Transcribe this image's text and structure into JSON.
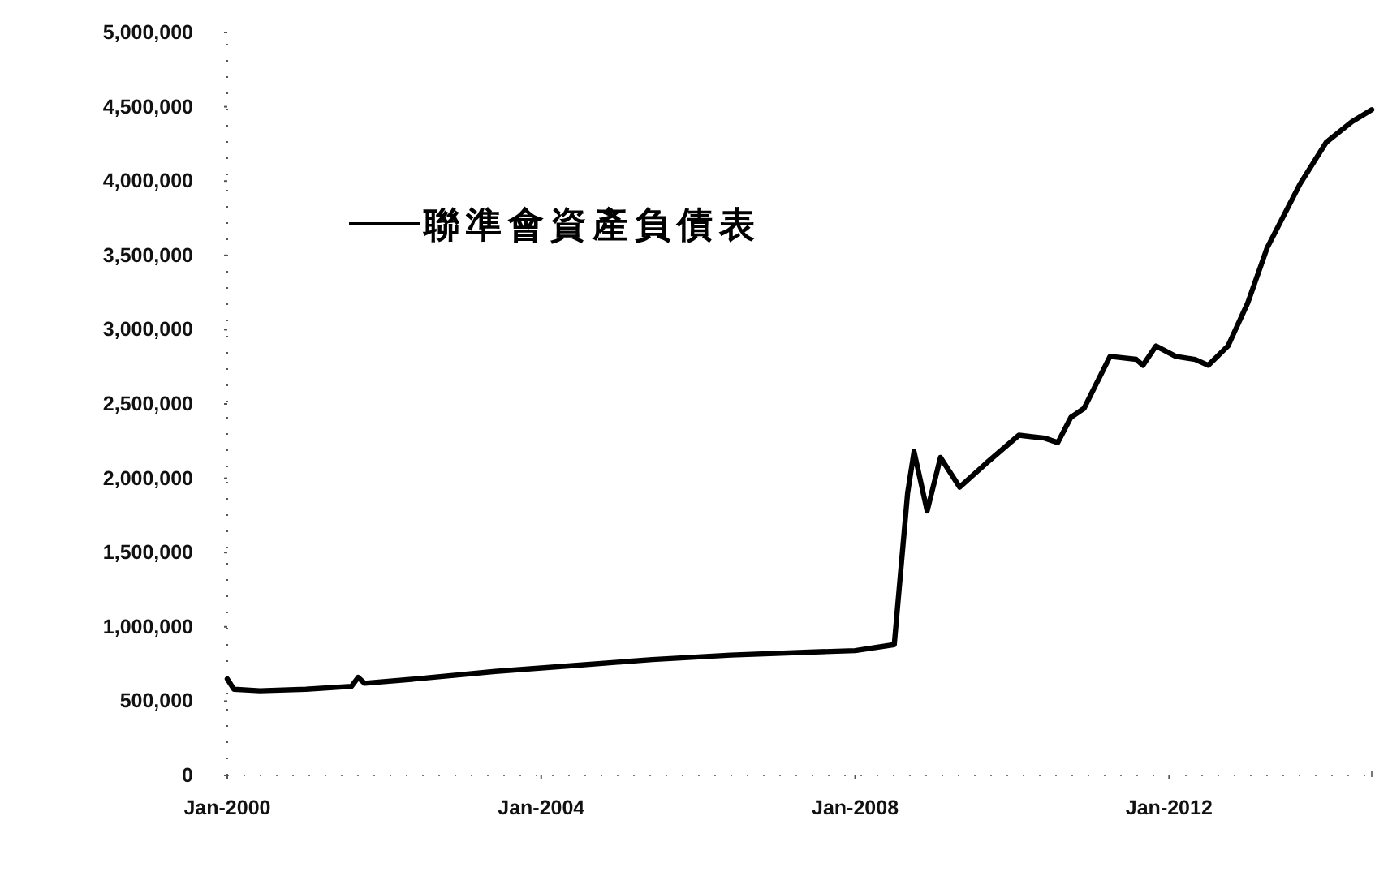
{
  "chart_data": {
    "type": "line",
    "x": [
      "2000-01",
      "2000-02",
      "2000-06",
      "2001-01",
      "2001-08",
      "2001-09",
      "2001-10",
      "2002-06",
      "2003-06",
      "2004-06",
      "2005-06",
      "2006-06",
      "2007-06",
      "2008-01",
      "2008-07",
      "2008-09",
      "2008-10",
      "2008-12",
      "2009-02",
      "2009-05",
      "2009-09",
      "2010-02",
      "2010-06",
      "2010-08",
      "2010-10",
      "2010-12",
      "2011-04",
      "2011-08",
      "2011-09",
      "2011-11",
      "2012-02",
      "2012-05",
      "2012-07",
      "2012-10",
      "2013-01",
      "2013-04",
      "2013-09",
      "2014-01",
      "2014-05",
      "2014-08"
    ],
    "series": [
      {
        "name": "聯準會資產負債表",
        "color": "#000000",
        "values": [
          650000,
          580000,
          570000,
          580000,
          600000,
          660000,
          620000,
          650000,
          700000,
          740000,
          780000,
          810000,
          830000,
          840000,
          880000,
          1900000,
          2180000,
          1780000,
          2140000,
          1940000,
          2100000,
          2290000,
          2270000,
          2240000,
          2410000,
          2470000,
          2820000,
          2800000,
          2760000,
          2890000,
          2820000,
          2800000,
          2760000,
          2890000,
          3180000,
          3550000,
          3980000,
          4260000,
          4400000,
          4480000
        ]
      }
    ],
    "xlim": [
      "2000-01",
      "2014-08"
    ],
    "xticks": [
      {
        "value": "2000-01",
        "label": "Jan-2000"
      },
      {
        "value": "2004-01",
        "label": "Jan-2004"
      },
      {
        "value": "2008-01",
        "label": "Jan-2008"
      },
      {
        "value": "2012-01",
        "label": "Jan-2012"
      }
    ],
    "ylim": [
      0,
      5000000
    ],
    "yticks": [
      0,
      {
        "value": 500000,
        "label": "500,000"
      },
      {
        "value": 1000000,
        "label": "1,000,000"
      },
      {
        "value": 1500000,
        "label": "1,500,000"
      },
      {
        "value": 2000000,
        "label": "2,000,000"
      },
      {
        "value": 2500000,
        "label": "2,500,000"
      },
      {
        "value": 3000000,
        "label": "3,000,000"
      },
      {
        "value": 3500000,
        "label": "3,500,000"
      },
      {
        "value": 4000000,
        "label": "4,000,000"
      },
      {
        "value": 4500000,
        "label": "4,500,000"
      },
      {
        "value": 5000000,
        "label": "5,000,000"
      }
    ],
    "grid": false,
    "legend": "top left",
    "line_style": "solid",
    "marker": "none"
  }
}
